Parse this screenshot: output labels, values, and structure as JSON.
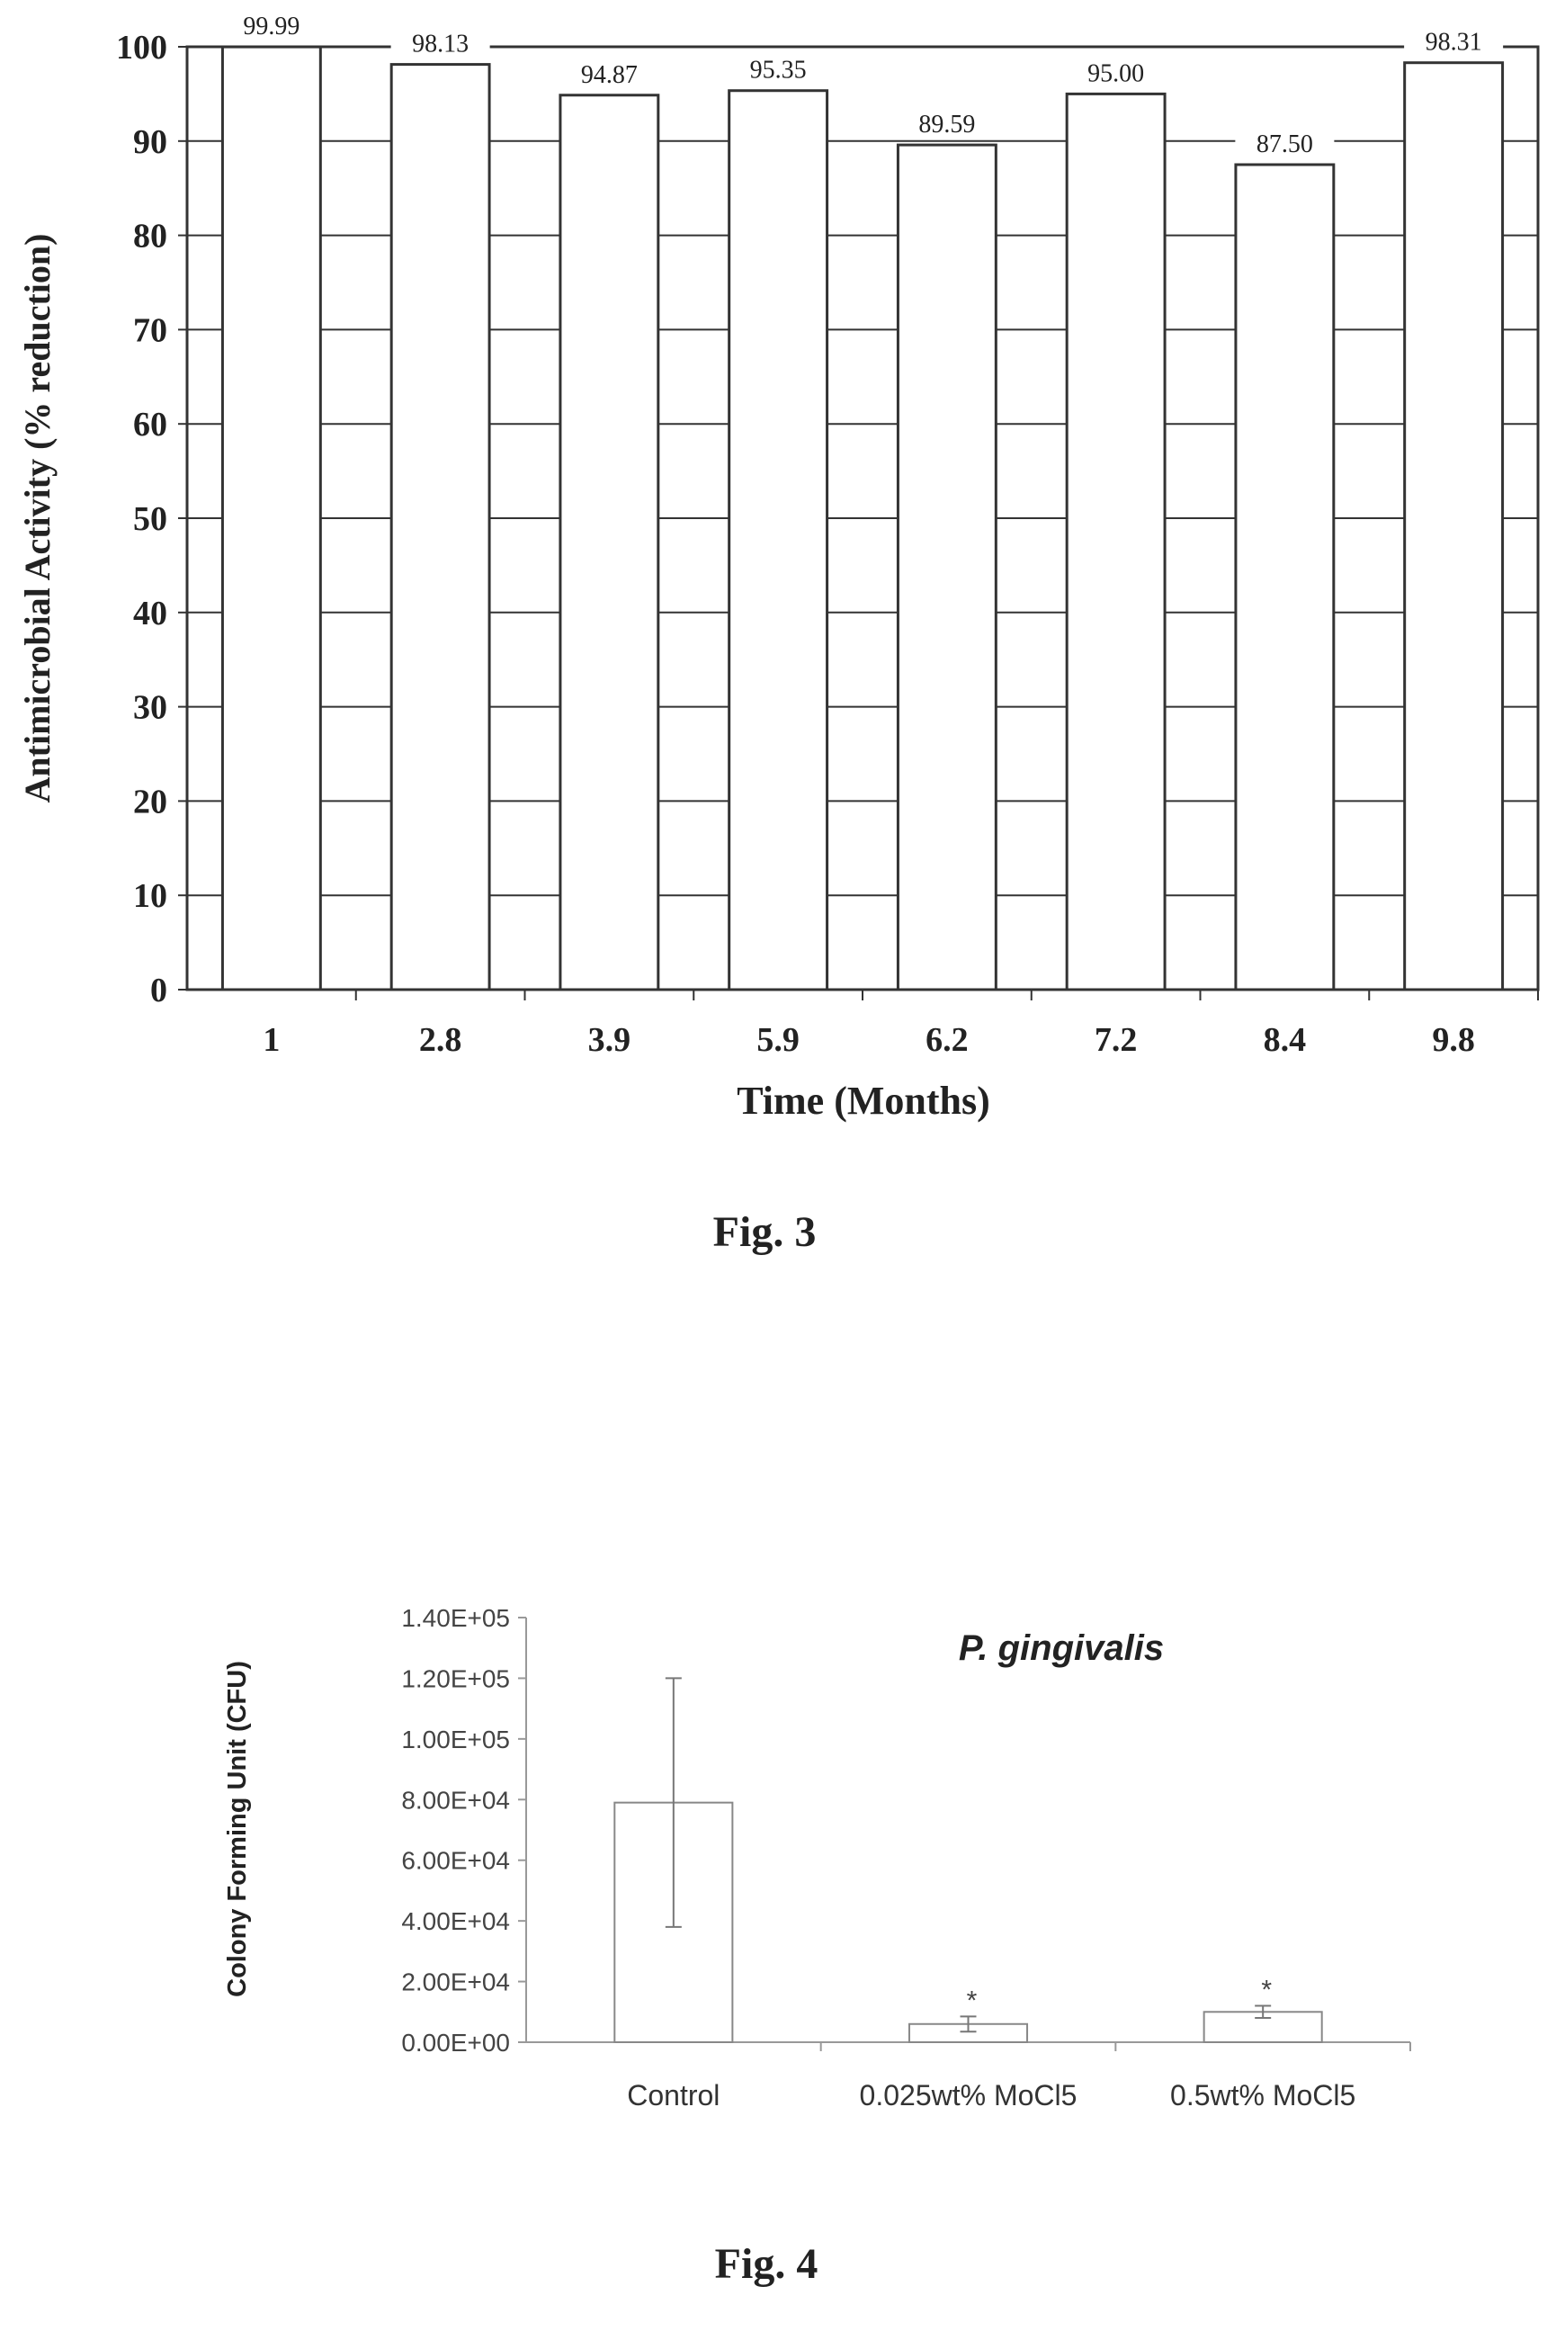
{
  "figures": [
    {
      "caption": "Fig. 3"
    },
    {
      "caption": "Fig. 4"
    }
  ],
  "chart_data": [
    {
      "type": "bar",
      "title": "",
      "xlabel": "Time (Months)",
      "ylabel": "Antimicrobial Activity (% reduction)",
      "ylim": [
        0,
        100
      ],
      "yticks": [
        "0",
        "10",
        "20",
        "30",
        "40",
        "50",
        "60",
        "70",
        "80",
        "90",
        "100"
      ],
      "categories": [
        "1",
        "2.8",
        "3.9",
        "5.9",
        "6.2",
        "7.2",
        "8.4",
        "9.8"
      ],
      "values": [
        99.99,
        98.13,
        94.87,
        95.35,
        89.59,
        95.0,
        87.5,
        98.31
      ],
      "data_labels": [
        "99.99",
        "98.13",
        "94.87",
        "95.35",
        "89.59",
        "95.00",
        "87.50",
        "98.31"
      ],
      "grid": true,
      "legend": "none"
    },
    {
      "type": "bar",
      "title": "P. gingivalis",
      "xlabel": "",
      "ylabel": "Colony Forming Unit (CFU)",
      "ylim": [
        0,
        140000
      ],
      "yticks": [
        "0.00E+00",
        "2.00E+04",
        "4.00E+04",
        "6.00E+04",
        "8.00E+04",
        "1.00E+05",
        "1.20E+05",
        "1.40E+05"
      ],
      "categories": [
        "Control",
        "0.025wt% MoCl5",
        "0.5wt% MoCl5"
      ],
      "values": [
        79000,
        6000,
        10000
      ],
      "error": [
        41000,
        2500,
        2000
      ],
      "markers": [
        "",
        "*",
        "*"
      ],
      "grid": false,
      "legend": "none"
    }
  ]
}
